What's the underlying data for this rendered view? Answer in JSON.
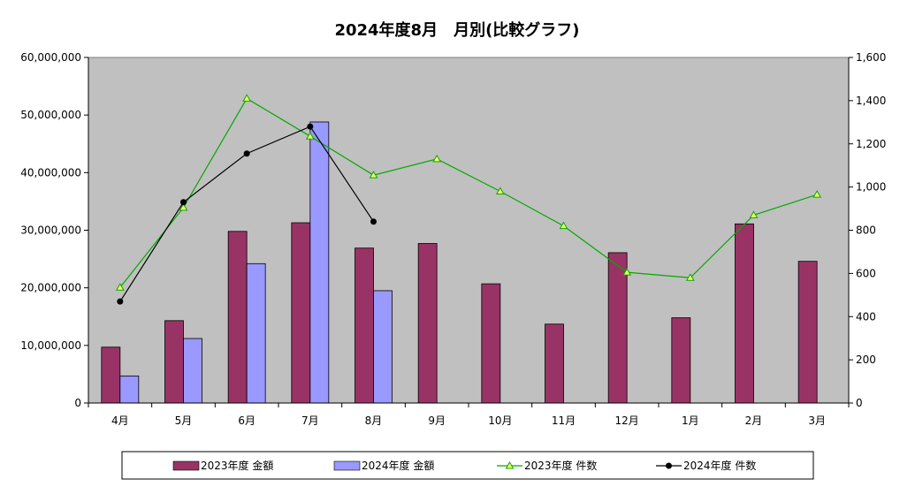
{
  "chart_data": {
    "type": "bar",
    "title": "2024年度8月　月別(比較グラフ)",
    "categories": [
      "4月",
      "5月",
      "6月",
      "7月",
      "8月",
      "9月",
      "10月",
      "11月",
      "12月",
      "1月",
      "2月",
      "3月"
    ],
    "y_left": {
      "ylim": [
        0,
        60000000
      ],
      "ticks": [
        "0",
        "10,000,000",
        "20,000,000",
        "30,000,000",
        "40,000,000",
        "50,000,000",
        "60,000,000"
      ]
    },
    "y_right": {
      "ylim": [
        0,
        1600
      ],
      "ticks": [
        "0",
        "200",
        "400",
        "600",
        "800",
        "1,000",
        "1,200",
        "1,400",
        "1,600"
      ]
    },
    "grid": false,
    "legend_position": "bottom",
    "series": [
      {
        "name": "2023年度 金額",
        "kind": "bar",
        "axis": "left",
        "color": "#993366",
        "values": [
          9700000,
          14300000,
          29800000,
          31300000,
          26900000,
          27700000,
          20700000,
          13700000,
          26100000,
          14800000,
          31100000,
          24600000
        ]
      },
      {
        "name": "2024年度 金額",
        "kind": "bar",
        "axis": "left",
        "color": "#9999ff",
        "values": [
          4700000,
          11200000,
          24200000,
          48800000,
          19500000,
          null,
          null,
          null,
          null,
          null,
          null,
          null
        ]
      },
      {
        "name": "2023年度 件数",
        "kind": "line",
        "axis": "right",
        "color": "#00aa00",
        "marker": "triangle",
        "values": [
          535,
          905,
          1410,
          1235,
          1055,
          1130,
          980,
          820,
          605,
          580,
          870,
          965
        ]
      },
      {
        "name": "2024年度 件数",
        "kind": "line",
        "axis": "right",
        "color": "#000000",
        "marker": "circle",
        "values": [
          470,
          930,
          1155,
          1280,
          840,
          null,
          null,
          null,
          null,
          null,
          null,
          null
        ]
      }
    ]
  }
}
